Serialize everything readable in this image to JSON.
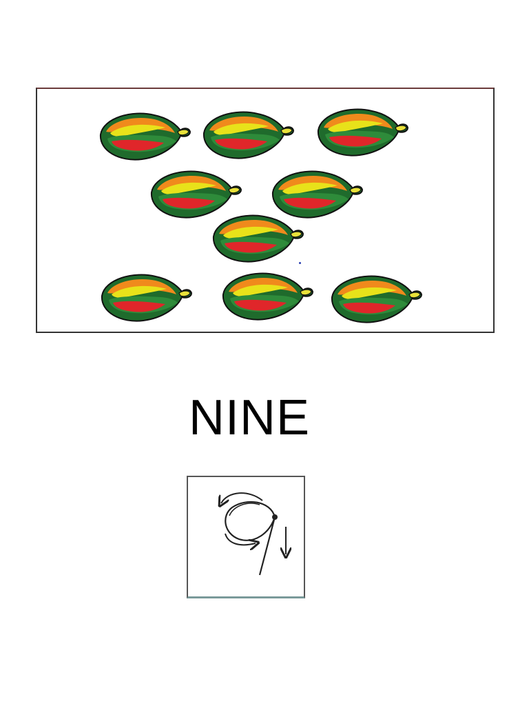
{
  "number_word": "NINE",
  "fruit_count": 9,
  "fruit_icon": "papaya-icon",
  "numeral_icon": "numeral-nine-tracing-icon",
  "colors": {
    "fruit_outer": "#1f6b2c",
    "fruit_inner": "#2e8b3a",
    "fruit_highlight": "#e8e21a",
    "fruit_flesh": "#e0262a",
    "fruit_orange": "#f08a1c",
    "stem": "#e8e23a",
    "outline": "#111111"
  }
}
